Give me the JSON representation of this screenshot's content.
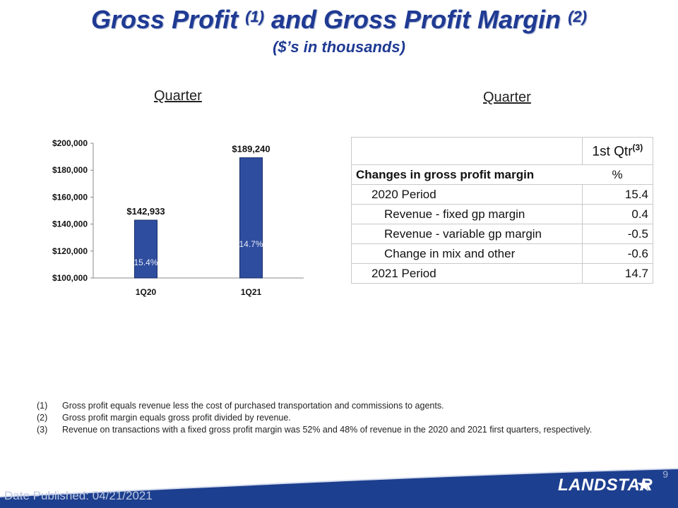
{
  "header": {
    "title_part1": "Gross Profit",
    "title_sup1": "(1)",
    "title_part2": "and Gross Profit Margin",
    "title_sup2": "(2)",
    "subtitle": "($’s in thousands)"
  },
  "left_quarter_label": "Quarter",
  "right_quarter_label": "Quarter",
  "chart_data": {
    "type": "bar",
    "categories": [
      "1Q20",
      "1Q21"
    ],
    "values": [
      142933,
      189240
    ],
    "value_labels": [
      "$142,933",
      "$189,240"
    ],
    "bar_annotations": [
      "15.4%",
      "14.7%"
    ],
    "y_ticks": [
      "$200,000",
      "$180,000",
      "$160,000",
      "$140,000",
      "$120,000",
      "$100,000"
    ],
    "ylim": [
      100000,
      200000
    ],
    "grid": false,
    "bar_color": "#2e4d9e"
  },
  "table": {
    "col_header": "1st Qtr",
    "col_header_sup": "(3)",
    "section_label": "Changes in gross profit margin",
    "unit": "%",
    "rows": [
      {
        "label": "2020 Period",
        "value": "15.4"
      },
      {
        "label": "Revenue - fixed gp margin",
        "value": "0.4"
      },
      {
        "label": "Revenue - variable gp margin",
        "value": "-0.5"
      },
      {
        "label": "Change in mix and other",
        "value": "-0.6"
      },
      {
        "label": "2021 Period",
        "value": "14.7"
      }
    ]
  },
  "footnotes": [
    {
      "num": "(1)",
      "text": "Gross profit equals revenue less the cost of purchased transportation and commissions to agents."
    },
    {
      "num": "(2)",
      "text": "Gross profit margin equals gross profit divided by revenue."
    },
    {
      "num": "(3)",
      "text": "Revenue on transactions with a fixed gross profit margin was 52% and 48% of revenue in the 2020 and 2021 first quarters, respectively."
    }
  ],
  "footer": {
    "page_number": "9",
    "date_published": "Date Published:  04/21/2021",
    "logo_text": "LANDSTAR",
    "logo_icon": "star-icon",
    "band_color": "#1d3f8f"
  }
}
